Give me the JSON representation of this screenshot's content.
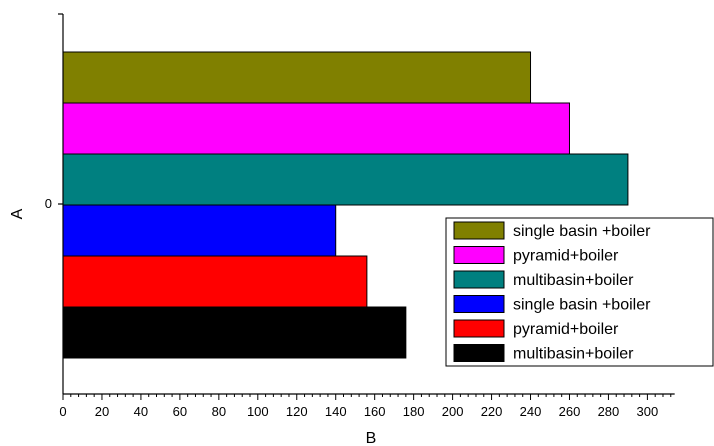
{
  "chart_data": {
    "type": "bar",
    "orientation": "horizontal",
    "xlabel": "B",
    "ylabel": "A",
    "categories": [
      "0"
    ],
    "xlim": [
      0,
      314
    ],
    "x_ticks": [
      0,
      20,
      40,
      60,
      80,
      100,
      120,
      140,
      160,
      180,
      200,
      220,
      240,
      260,
      280,
      300
    ],
    "legend_position": "right",
    "grid": false,
    "series": [
      {
        "name": "single basin +boiler",
        "values": [
          240
        ],
        "color": "#808000"
      },
      {
        "name": "pyramid+boiler",
        "values": [
          260
        ],
        "color": "#ff00ff"
      },
      {
        "name": "multibasin+boiler",
        "values": [
          290
        ],
        "color": "#008080"
      },
      {
        "name": "single basin +boiler",
        "values": [
          140
        ],
        "color": "#0000ff"
      },
      {
        "name": "pyramid+boiler",
        "values": [
          156
        ],
        "color": "#ff0000"
      },
      {
        "name": "multibasin+boiler",
        "values": [
          176
        ],
        "color": "#000000"
      }
    ]
  }
}
